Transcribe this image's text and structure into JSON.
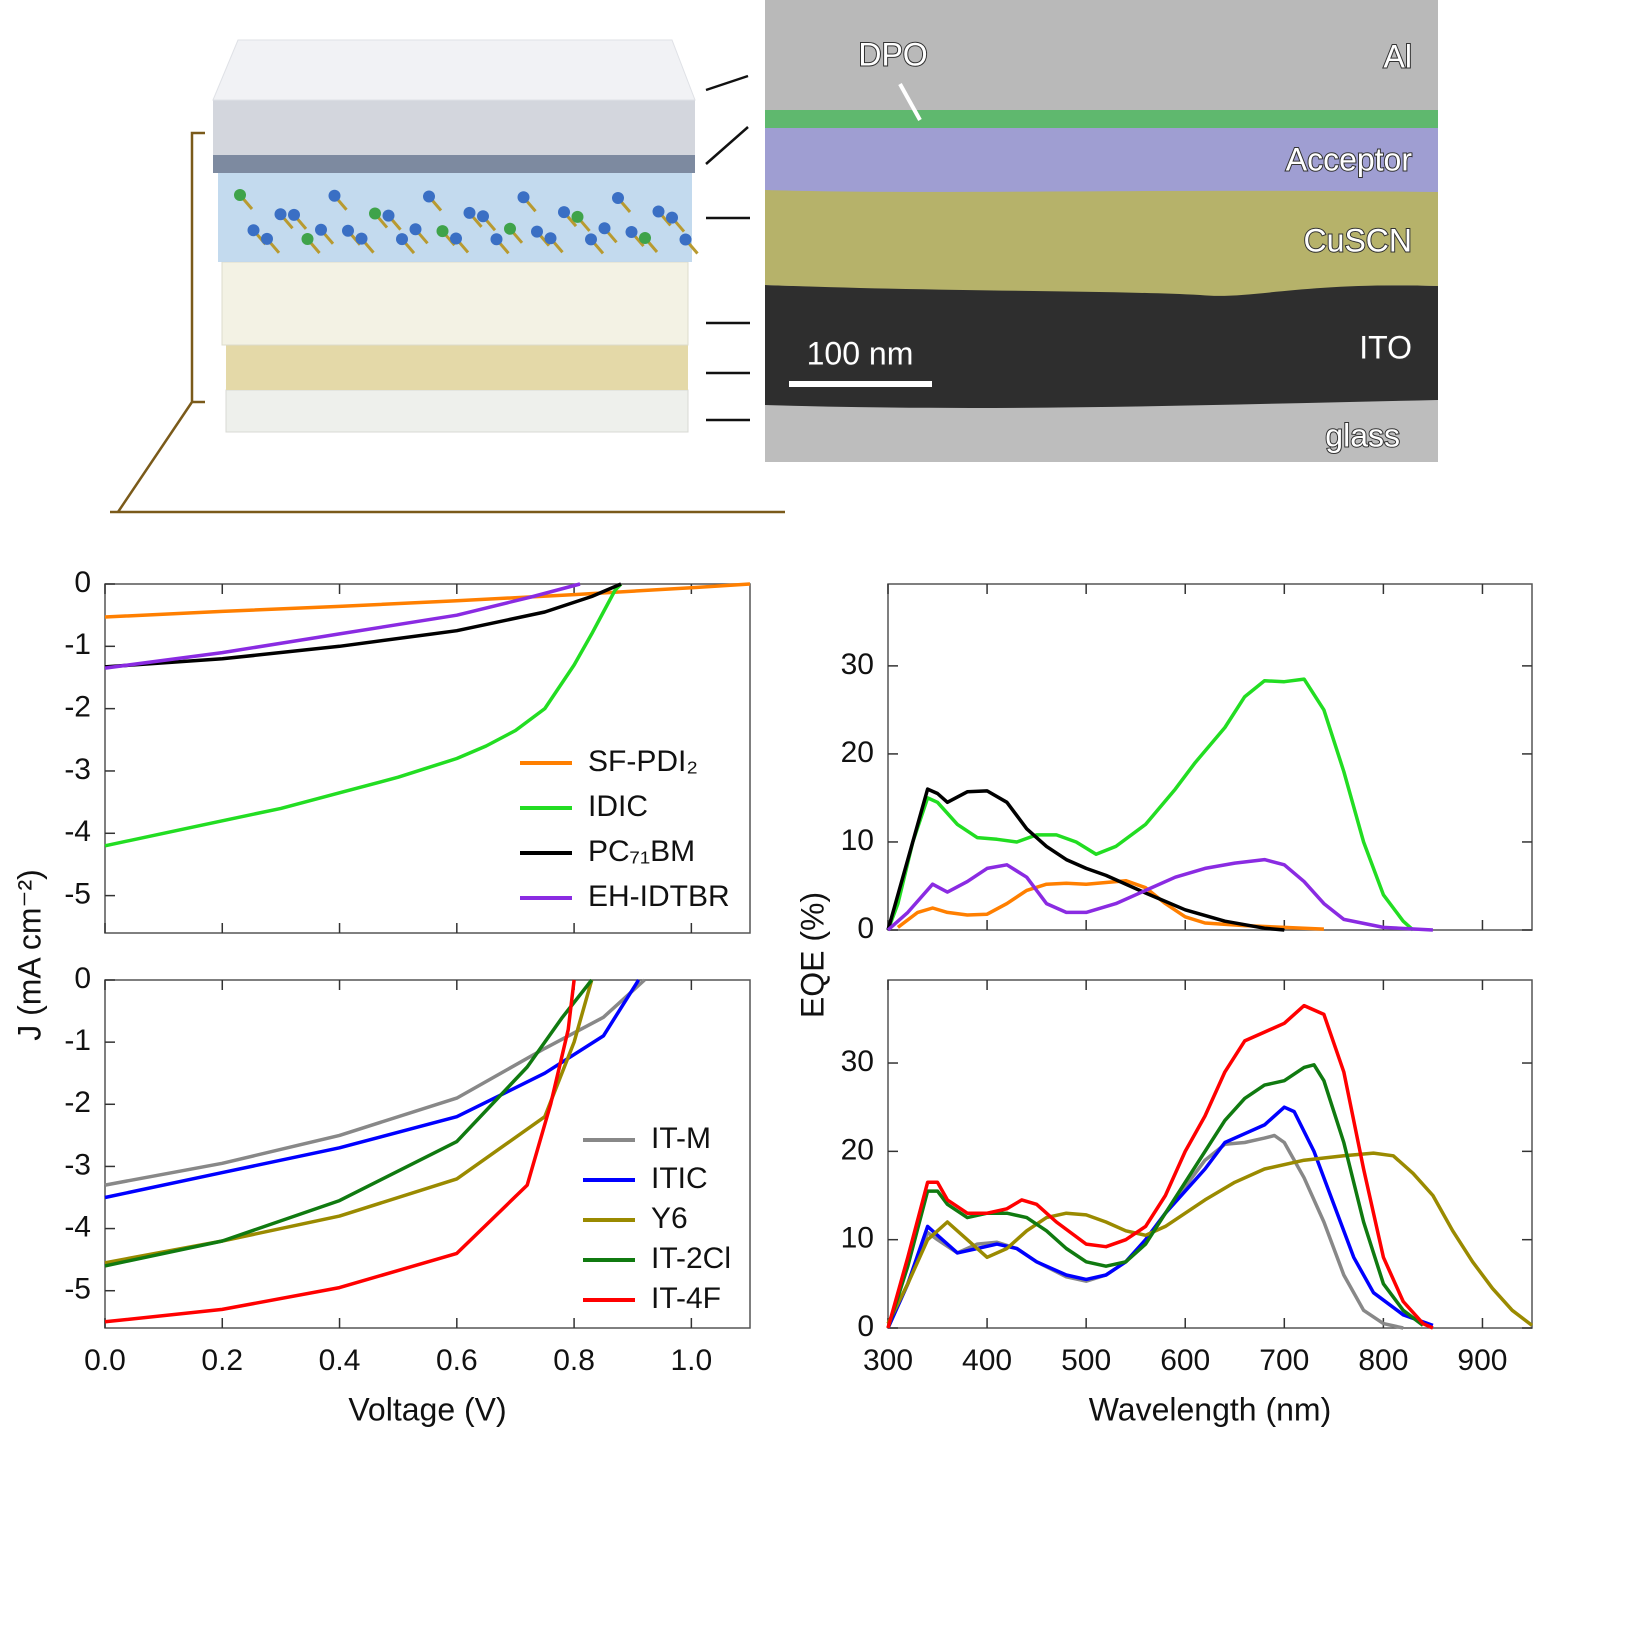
{
  "illustration": {
    "tem_labels": [
      "DPO",
      "Al",
      "Acceptor",
      "CuSCN",
      "ITO",
      "glass"
    ],
    "scale_bar": "100 nm"
  },
  "chart_data": [
    {
      "type": "line",
      "xlim": [
        0,
        1.1
      ],
      "ylim": [
        -5.6,
        0
      ],
      "yticks": [
        0,
        -1,
        -2,
        -3,
        -4,
        -5
      ],
      "legend": "lower right",
      "series": [
        {
          "name": "SF-PDI₂",
          "color": "#ff7f00",
          "x": [
            0,
            0.2,
            0.4,
            0.6,
            0.8,
            1.0,
            1.1
          ],
          "values": [
            -0.53,
            -0.44,
            -0.36,
            -0.27,
            -0.17,
            -0.06,
            0
          ]
        },
        {
          "name": "IDIC",
          "color": "#22dd22",
          "x": [
            0,
            0.1,
            0.2,
            0.3,
            0.4,
            0.5,
            0.6,
            0.65,
            0.7,
            0.75,
            0.8,
            0.83,
            0.85,
            0.87,
            0.88
          ],
          "values": [
            -4.2,
            -4.0,
            -3.8,
            -3.6,
            -3.35,
            -3.1,
            -2.8,
            -2.6,
            -2.35,
            -2.0,
            -1.3,
            -0.8,
            -0.45,
            -0.1,
            0
          ]
        },
        {
          "name": "PC₇₁BM",
          "color": "#000000",
          "x": [
            0,
            0.2,
            0.4,
            0.6,
            0.75,
            0.83,
            0.88
          ],
          "values": [
            -1.33,
            -1.2,
            -1.0,
            -0.75,
            -0.45,
            -0.2,
            0
          ]
        },
        {
          "name": "EH-IDTBR",
          "color": "#8a2be2",
          "x": [
            0,
            0.2,
            0.4,
            0.6,
            0.73,
            0.81
          ],
          "values": [
            -1.35,
            -1.1,
            -0.8,
            -0.5,
            -0.2,
            0
          ]
        }
      ]
    },
    {
      "type": "line",
      "xlim": [
        0,
        1.1
      ],
      "ylim": [
        -5.6,
        0
      ],
      "yticks": [
        0,
        -1,
        -2,
        -3,
        -4,
        -5
      ],
      "xticks": [
        {
          "value": 0,
          "label": "0.0"
        },
        0.2,
        0.4,
        0.6,
        0.8,
        {
          "value": 1,
          "label": "1.0"
        }
      ],
      "xlabel": "Voltage (V)",
      "ylabel": "J (mA cm⁻²)",
      "legend": "lower right",
      "series": [
        {
          "name": "IT-M",
          "color": "#888888",
          "x": [
            0,
            0.2,
            0.4,
            0.6,
            0.75,
            0.85,
            0.92
          ],
          "values": [
            -3.3,
            -2.95,
            -2.5,
            -1.9,
            -1.1,
            -0.6,
            0
          ]
        },
        {
          "name": "ITIC",
          "color": "#0000ff",
          "x": [
            0,
            0.2,
            0.4,
            0.6,
            0.75,
            0.85,
            0.91
          ],
          "values": [
            -3.5,
            -3.1,
            -2.7,
            -2.2,
            -1.5,
            -0.9,
            0
          ]
        },
        {
          "name": "Y6",
          "color": "#9a8a00",
          "x": [
            0,
            0.2,
            0.4,
            0.6,
            0.75,
            0.8,
            0.83
          ],
          "values": [
            -4.55,
            -4.2,
            -3.8,
            -3.2,
            -2.2,
            -1.0,
            0
          ]
        },
        {
          "name": "IT-2Cl",
          "color": "#107a10",
          "x": [
            0,
            0.2,
            0.4,
            0.6,
            0.72,
            0.78,
            0.83
          ],
          "values": [
            -4.6,
            -4.2,
            -3.55,
            -2.6,
            -1.4,
            -0.6,
            0
          ]
        },
        {
          "name": "IT-4F",
          "color": "#ff0000",
          "x": [
            0,
            0.2,
            0.4,
            0.6,
            0.72,
            0.76,
            0.79,
            0.8
          ],
          "values": [
            -5.5,
            -5.3,
            -4.95,
            -4.4,
            -3.3,
            -2.0,
            -0.8,
            0
          ]
        }
      ]
    },
    {
      "type": "line",
      "xlim": [
        300,
        950
      ],
      "ylim": [
        0,
        39.3
      ],
      "yticks": [
        0,
        10,
        20,
        30
      ],
      "series": [
        {
          "name": "SF-PDI₂",
          "color": "#ff7f00",
          "x": [
            310,
            330,
            345,
            360,
            380,
            400,
            420,
            440,
            460,
            480,
            500,
            520,
            540,
            560,
            580,
            600,
            620,
            660,
            700,
            740
          ],
          "values": [
            0.3,
            2,
            2.5,
            2,
            1.7,
            1.8,
            3,
            4.5,
            5.2,
            5.3,
            5.2,
            5.4,
            5.6,
            4.8,
            3,
            1.5,
            0.8,
            0.5,
            0.3,
            0.1
          ]
        },
        {
          "name": "IDIC",
          "color": "#22dd22",
          "x": [
            300,
            310,
            325,
            340,
            350,
            370,
            390,
            410,
            430,
            450,
            470,
            490,
            510,
            530,
            560,
            590,
            610,
            640,
            660,
            680,
            700,
            720,
            740,
            760,
            780,
            800,
            820,
            830
          ],
          "values": [
            0,
            3,
            10,
            15,
            14.5,
            12,
            10.5,
            10.3,
            10,
            10.8,
            10.8,
            10,
            8.6,
            9.5,
            12,
            16,
            19,
            23,
            26.5,
            28.3,
            28.2,
            28.5,
            25,
            18,
            10,
            4,
            1,
            0
          ]
        },
        {
          "name": "PC₇₁BM",
          "color": "#000000",
          "x": [
            300,
            320,
            340,
            350,
            360,
            380,
            400,
            420,
            440,
            460,
            480,
            500,
            520,
            560,
            600,
            640,
            680,
            700
          ],
          "values": [
            0,
            8,
            16,
            15.5,
            14.5,
            15.7,
            15.8,
            14.5,
            11.5,
            9.5,
            8,
            7,
            6.2,
            4.2,
            2.3,
            1,
            0.2,
            0
          ]
        },
        {
          "name": "EH-IDTBR",
          "color": "#8a2be2",
          "x": [
            300,
            320,
            345,
            360,
            380,
            400,
            420,
            440,
            460,
            480,
            500,
            530,
            560,
            590,
            620,
            650,
            680,
            700,
            720,
            740,
            760,
            800,
            850
          ],
          "values": [
            0,
            2,
            5.2,
            4.3,
            5.5,
            7,
            7.4,
            6,
            3,
            2,
            2,
            3,
            4.5,
            6,
            7,
            7.6,
            8,
            7.4,
            5.5,
            3,
            1.2,
            0.3,
            0
          ]
        }
      ]
    },
    {
      "type": "line",
      "xlim": [
        300,
        950
      ],
      "ylim": [
        0,
        39.4
      ],
      "yticks": [
        0,
        10,
        20,
        30
      ],
      "xticks": [
        300,
        400,
        500,
        600,
        700,
        800,
        900
      ],
      "xlabel": "Wavelength (nm)",
      "ylabel": "EQE (%)",
      "series": [
        {
          "name": "IT-M",
          "color": "#888888",
          "x": [
            300,
            320,
            340,
            350,
            370,
            390,
            410,
            430,
            450,
            480,
            500,
            520,
            540,
            560,
            580,
            600,
            620,
            640,
            660,
            680,
            690,
            700,
            720,
            740,
            760,
            780,
            800,
            820
          ],
          "values": [
            0,
            5,
            10.8,
            10,
            8.5,
            9.5,
            9.7,
            9,
            7.5,
            5.8,
            5.3,
            6,
            7.5,
            10,
            13,
            16,
            19,
            20.8,
            21,
            21.5,
            21.8,
            21,
            17,
            12,
            6,
            2,
            0.5,
            0
          ]
        },
        {
          "name": "ITIC",
          "color": "#0000ff",
          "x": [
            300,
            320,
            340,
            350,
            370,
            390,
            410,
            430,
            450,
            480,
            500,
            520,
            540,
            560,
            580,
            600,
            620,
            640,
            660,
            680,
            700,
            710,
            730,
            750,
            770,
            790,
            820,
            850
          ],
          "values": [
            0,
            5,
            11.5,
            10.5,
            8.5,
            9,
            9.5,
            9,
            7.5,
            6,
            5.5,
            6,
            7.5,
            10,
            13,
            15.5,
            18,
            21,
            22,
            23,
            25,
            24.5,
            20,
            14,
            8,
            4,
            1.5,
            0.3
          ]
        },
        {
          "name": "Y6",
          "color": "#9a8a00",
          "x": [
            300,
            320,
            340,
            360,
            380,
            400,
            420,
            440,
            460,
            480,
            500,
            520,
            540,
            560,
            580,
            600,
            620,
            650,
            680,
            720,
            760,
            790,
            810,
            830,
            850,
            870,
            890,
            910,
            930,
            950
          ],
          "values": [
            0.5,
            5,
            10,
            12,
            10,
            8,
            9,
            11,
            12.5,
            13,
            12.8,
            12,
            11,
            10.5,
            11.5,
            13,
            14.5,
            16.5,
            18,
            19,
            19.5,
            19.8,
            19.5,
            17.5,
            15,
            11,
            7.5,
            4.5,
            2,
            0.3
          ]
        },
        {
          "name": "IT-2Cl",
          "color": "#107a10",
          "x": [
            300,
            320,
            340,
            350,
            360,
            380,
            400,
            420,
            440,
            460,
            480,
            500,
            520,
            540,
            560,
            580,
            600,
            620,
            640,
            660,
            680,
            700,
            720,
            730,
            740,
            760,
            780,
            800,
            820,
            840
          ],
          "values": [
            0,
            7,
            15.5,
            15.5,
            14,
            12.5,
            13,
            13,
            12.5,
            11,
            9,
            7.5,
            7,
            7.5,
            9.5,
            13,
            16.5,
            20,
            23.5,
            26,
            27.5,
            28,
            29.5,
            29.8,
            28,
            21,
            12,
            5,
            2,
            0.3
          ]
        },
        {
          "name": "IT-4F",
          "color": "#ff0000",
          "x": [
            300,
            320,
            340,
            350,
            360,
            380,
            400,
            420,
            435,
            450,
            470,
            500,
            520,
            540,
            560,
            580,
            600,
            620,
            640,
            660,
            680,
            700,
            720,
            740,
            760,
            780,
            800,
            820,
            840,
            850
          ],
          "values": [
            0,
            8,
            16.5,
            16.5,
            14.5,
            13,
            13,
            13.5,
            14.5,
            14,
            12,
            9.5,
            9.2,
            10,
            11.5,
            15,
            20,
            24,
            29,
            32.5,
            33.5,
            34.5,
            36.5,
            35.5,
            29,
            18,
            8,
            3,
            0.5,
            0
          ]
        }
      ]
    }
  ]
}
